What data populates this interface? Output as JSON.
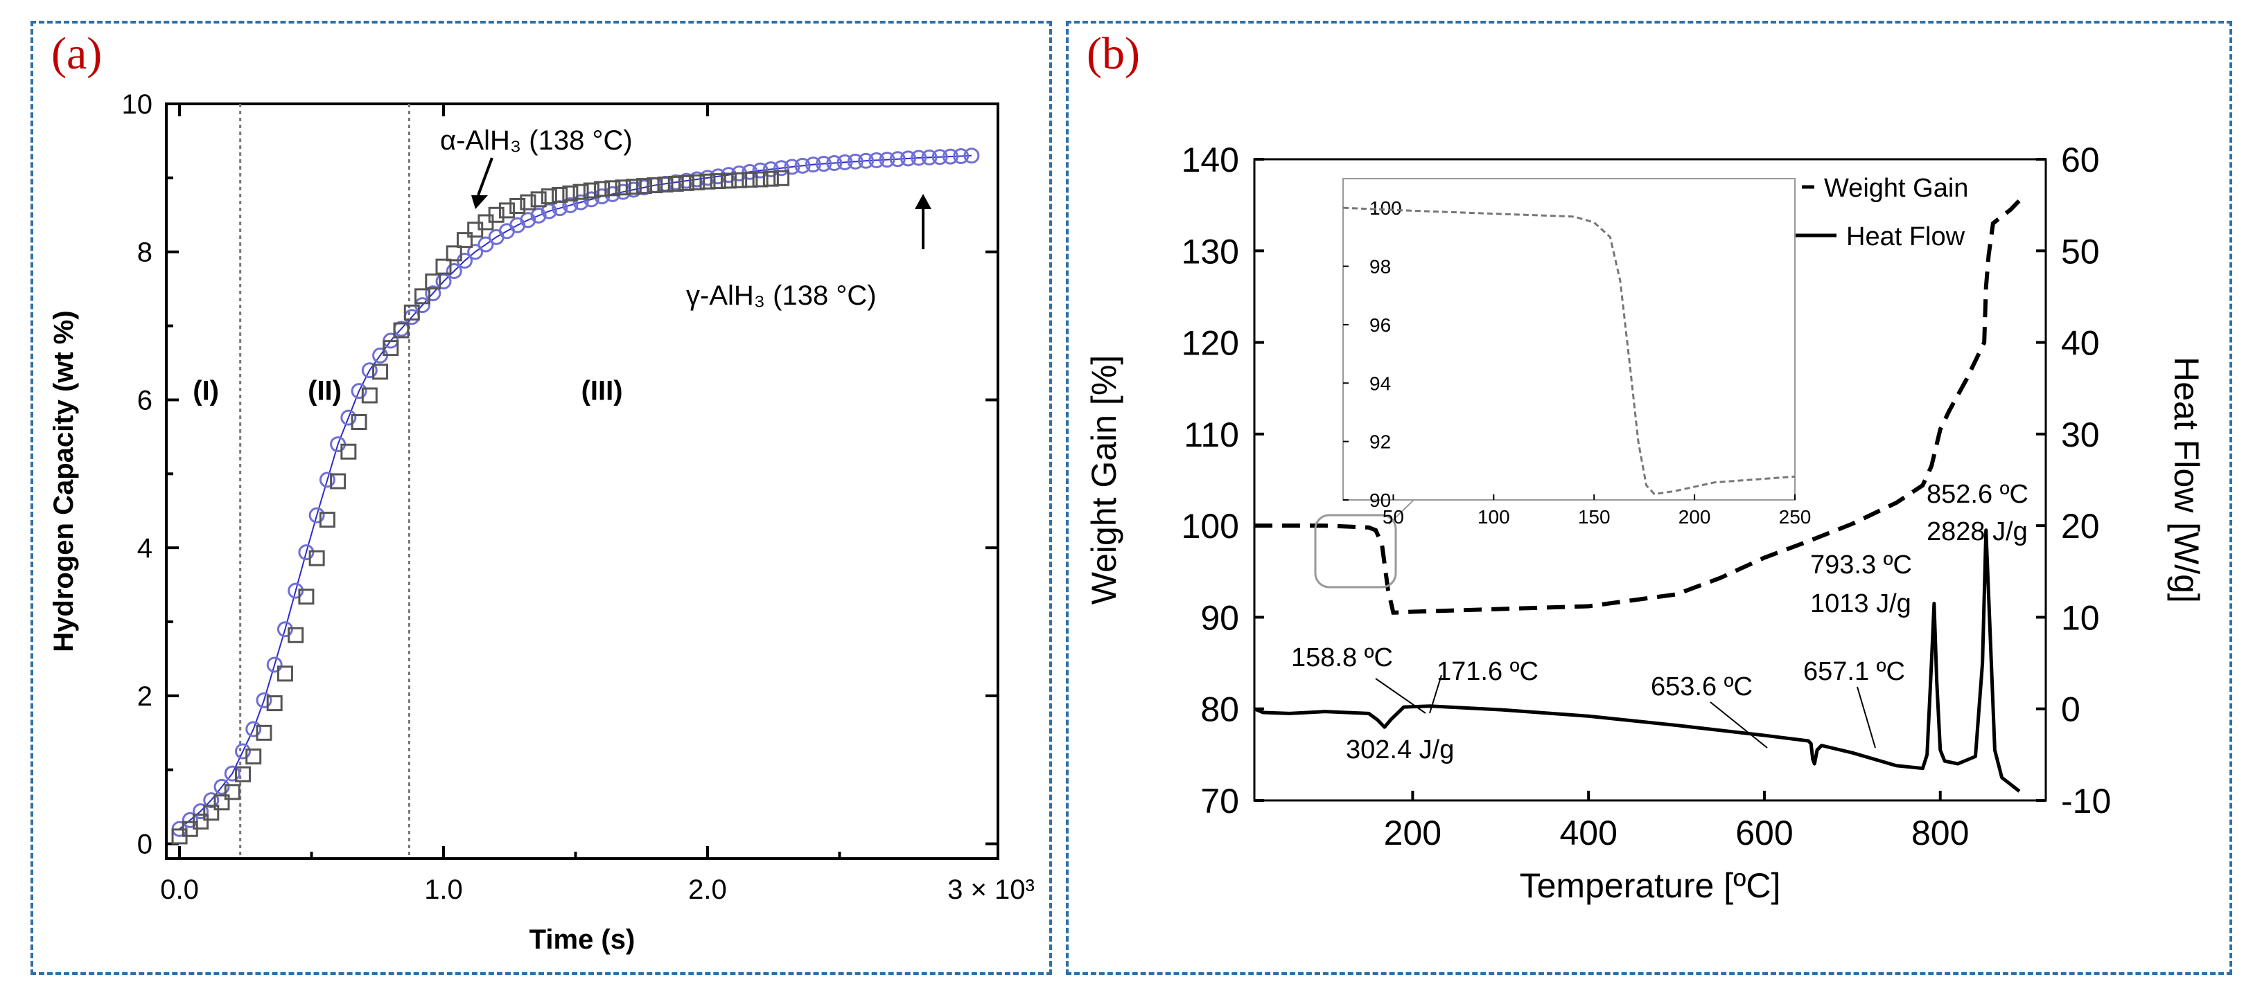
{
  "panels": {
    "a_label": "(a)",
    "b_label": "(b)"
  },
  "chart_data": [
    {
      "type": "scatter",
      "panel": "a",
      "xlabel": "Time (s)",
      "ylabel": "Hydrogen Capacity (wt %)",
      "xlim": [
        -0.05,
        3.1
      ],
      "ylim": [
        -0.2,
        10
      ],
      "x_ticks": [
        0,
        1,
        2
      ],
      "x_tick_labels": [
        "0.0",
        "1.0",
        "2.0"
      ],
      "x_multiplier_label": "3 × 10³",
      "y_ticks": [
        0,
        2,
        4,
        6,
        8,
        10
      ],
      "y_tick_labels": [
        "0",
        "2",
        "4",
        "6",
        "8",
        "10"
      ],
      "vlines": [
        0.23,
        0.87
      ],
      "regions": [
        "(I)",
        "(II)",
        "(III)"
      ],
      "annotations": {
        "alpha": "α-AlH₃ (138 °C)",
        "gamma": "γ-AlH₃ (138 °C)"
      },
      "series": [
        {
          "name": "α-AlH3 (138 °C)",
          "marker": "square",
          "color": "#555555",
          "x": [
            0,
            0.1,
            0.2,
            0.3,
            0.4,
            0.5,
            0.6,
            0.7,
            0.8,
            0.9,
            1.0,
            1.1,
            1.2,
            1.3,
            1.4,
            1.5,
            1.6,
            1.8,
            2.0,
            2.2,
            2.3
          ],
          "y": [
            0.1,
            0.35,
            0.7,
            1.3,
            2.3,
            3.6,
            4.9,
            5.9,
            6.7,
            7.3,
            7.8,
            8.25,
            8.5,
            8.65,
            8.75,
            8.8,
            8.85,
            8.9,
            8.95,
            8.98,
            9.0
          ]
        },
        {
          "name": "γ-AlH3 (138 °C)",
          "marker": "circle",
          "color": "#6f6fd6",
          "x": [
            0,
            0.1,
            0.2,
            0.3,
            0.4,
            0.5,
            0.6,
            0.7,
            0.8,
            0.9,
            1.0,
            1.1,
            1.2,
            1.3,
            1.4,
            1.6,
            1.8,
            2.0,
            2.2,
            2.4,
            2.6,
            2.8,
            3.0
          ],
          "y": [
            0.2,
            0.5,
            0.95,
            1.7,
            2.9,
            4.2,
            5.4,
            6.3,
            6.8,
            7.2,
            7.6,
            7.95,
            8.2,
            8.4,
            8.55,
            8.75,
            8.9,
            9.0,
            9.1,
            9.18,
            9.23,
            9.27,
            9.3
          ]
        }
      ]
    },
    {
      "type": "line",
      "panel": "b",
      "xlabel": "Temperature [ºC]",
      "ylabel": "Weight Gain [%]",
      "ylabel_right": "Heat Flow [W/g]",
      "xlim": [
        20,
        920
      ],
      "ylim": [
        70,
        140
      ],
      "ylim_right": [
        -10,
        60
      ],
      "x_ticks": [
        200,
        400,
        600,
        800
      ],
      "x_tick_labels": [
        "200",
        "400",
        "600",
        "800"
      ],
      "y_ticks": [
        70,
        80,
        90,
        100,
        110,
        120,
        130,
        140
      ],
      "y_tick_labels": [
        "70",
        "80",
        "90",
        "100",
        "110",
        "120",
        "130",
        "140"
      ],
      "y_ticks_right": [
        -10,
        0,
        10,
        20,
        30,
        40,
        50,
        60
      ],
      "y_tick_labels_right": [
        "-10",
        "0",
        "10",
        "20",
        "30",
        "40",
        "50",
        "60"
      ],
      "legend_position": "top-right",
      "series": [
        {
          "name": "Weight Gain",
          "style": "dashed",
          "axis": "left",
          "x": [
            20,
            100,
            150,
            158,
            165,
            172,
            178,
            200,
            300,
            400,
            500,
            550,
            600,
            650,
            700,
            750,
            780,
            790,
            800,
            810,
            830,
            850,
            852,
            855,
            860,
            880,
            890
          ],
          "y": [
            100,
            100,
            99.8,
            99.5,
            98,
            93,
            90.5,
            90.6,
            90.9,
            91.2,
            92.5,
            94.3,
            96.5,
            98.3,
            100.2,
            102.5,
            104.4,
            106.5,
            110.5,
            112.5,
            116,
            120,
            126,
            129.5,
            133,
            134.5,
            135.5
          ]
        },
        {
          "name": "Heat Flow",
          "style": "solid",
          "axis": "right",
          "x": [
            20,
            30,
            60,
            100,
            150,
            160,
            168,
            175,
            190,
            220,
            300,
            400,
            500,
            600,
            650,
            653,
            655,
            657,
            660,
            665,
            700,
            750,
            780,
            785,
            790,
            793,
            796,
            800,
            805,
            820,
            840,
            848,
            852,
            856,
            862,
            870,
            890
          ],
          "y": [
            0,
            -0.4,
            -0.5,
            -0.3,
            -0.5,
            -1.2,
            -2,
            -1.2,
            0.2,
            0.3,
            -0.1,
            -0.8,
            -1.8,
            -2.9,
            -3.5,
            -3.8,
            -5.5,
            -6,
            -4.5,
            -4,
            -4.8,
            -6.2,
            -6.5,
            -5,
            5,
            11.5,
            3,
            -4.5,
            -5.7,
            -6,
            -5.2,
            5,
            19.5,
            10,
            -4.5,
            -7.5,
            -9
          ]
        }
      ],
      "annotations": [
        "158.8 ºC",
        "171.6 ºC",
        "302.4 J/g",
        "653.6 ºC",
        "657.1 ºC",
        "793.3 ºC",
        "1013 J/g",
        "852.6 ºC",
        "2828 J/g"
      ],
      "inset": {
        "xlim": [
          25,
          250
        ],
        "ylim": [
          90,
          101
        ],
        "x_ticks": [
          50,
          100,
          150,
          200,
          250
        ],
        "x_tick_labels": [
          "50",
          "100",
          "150",
          "200",
          "250"
        ],
        "y_ticks": [
          90,
          92,
          94,
          96,
          98,
          100
        ],
        "y_tick_labels": [
          "90",
          "92",
          "94",
          "96",
          "98",
          "100"
        ],
        "x": [
          25,
          60,
          100,
          140,
          150,
          158,
          163,
          168,
          172,
          176,
          180,
          190,
          210,
          230,
          250
        ],
        "y": [
          100,
          99.9,
          99.8,
          99.7,
          99.5,
          99.0,
          97.5,
          94.5,
          92.0,
          90.5,
          90.2,
          90.3,
          90.6,
          90.7,
          90.8
        ]
      }
    }
  ]
}
